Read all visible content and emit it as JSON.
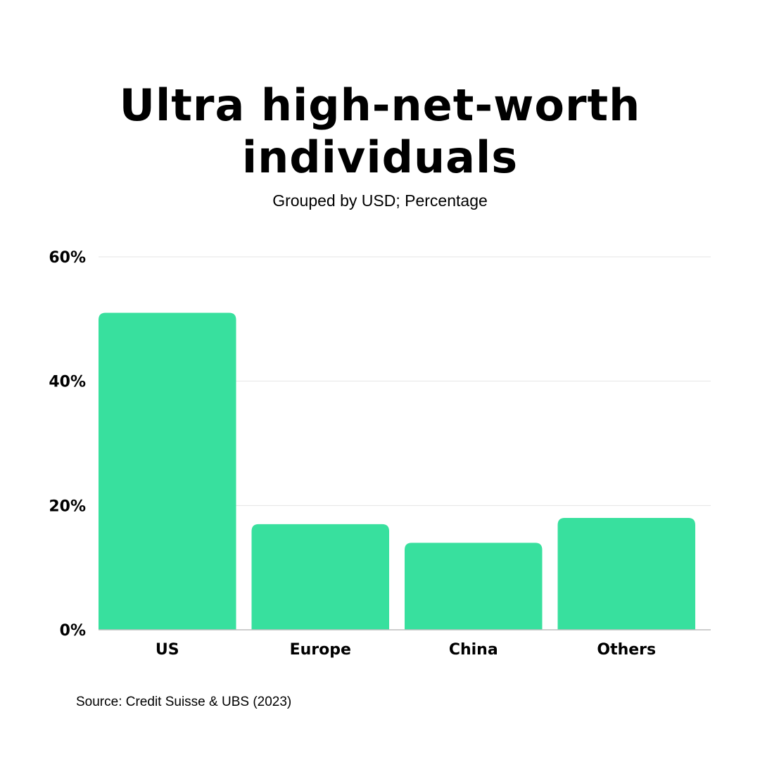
{
  "chart_data": {
    "type": "bar",
    "title_lines": [
      "Ultra high-net-worth",
      "individuals"
    ],
    "subtitle": "Grouped by USD; Percentage",
    "categories": [
      "US",
      "Europe",
      "China",
      "Others"
    ],
    "values": [
      51,
      17,
      14,
      18
    ],
    "unit": "%",
    "ylim": [
      0,
      60
    ],
    "yticks": [
      "0%",
      "20%",
      "40%",
      "60%"
    ],
    "ytick_values": [
      0,
      20,
      40,
      60
    ],
    "grid": true,
    "bar_color": "#38e09e",
    "grid_color": "#e5e5e5",
    "axis_color": "#bdbdbd"
  },
  "source": "Source: Credit Suisse & UBS (2023)"
}
